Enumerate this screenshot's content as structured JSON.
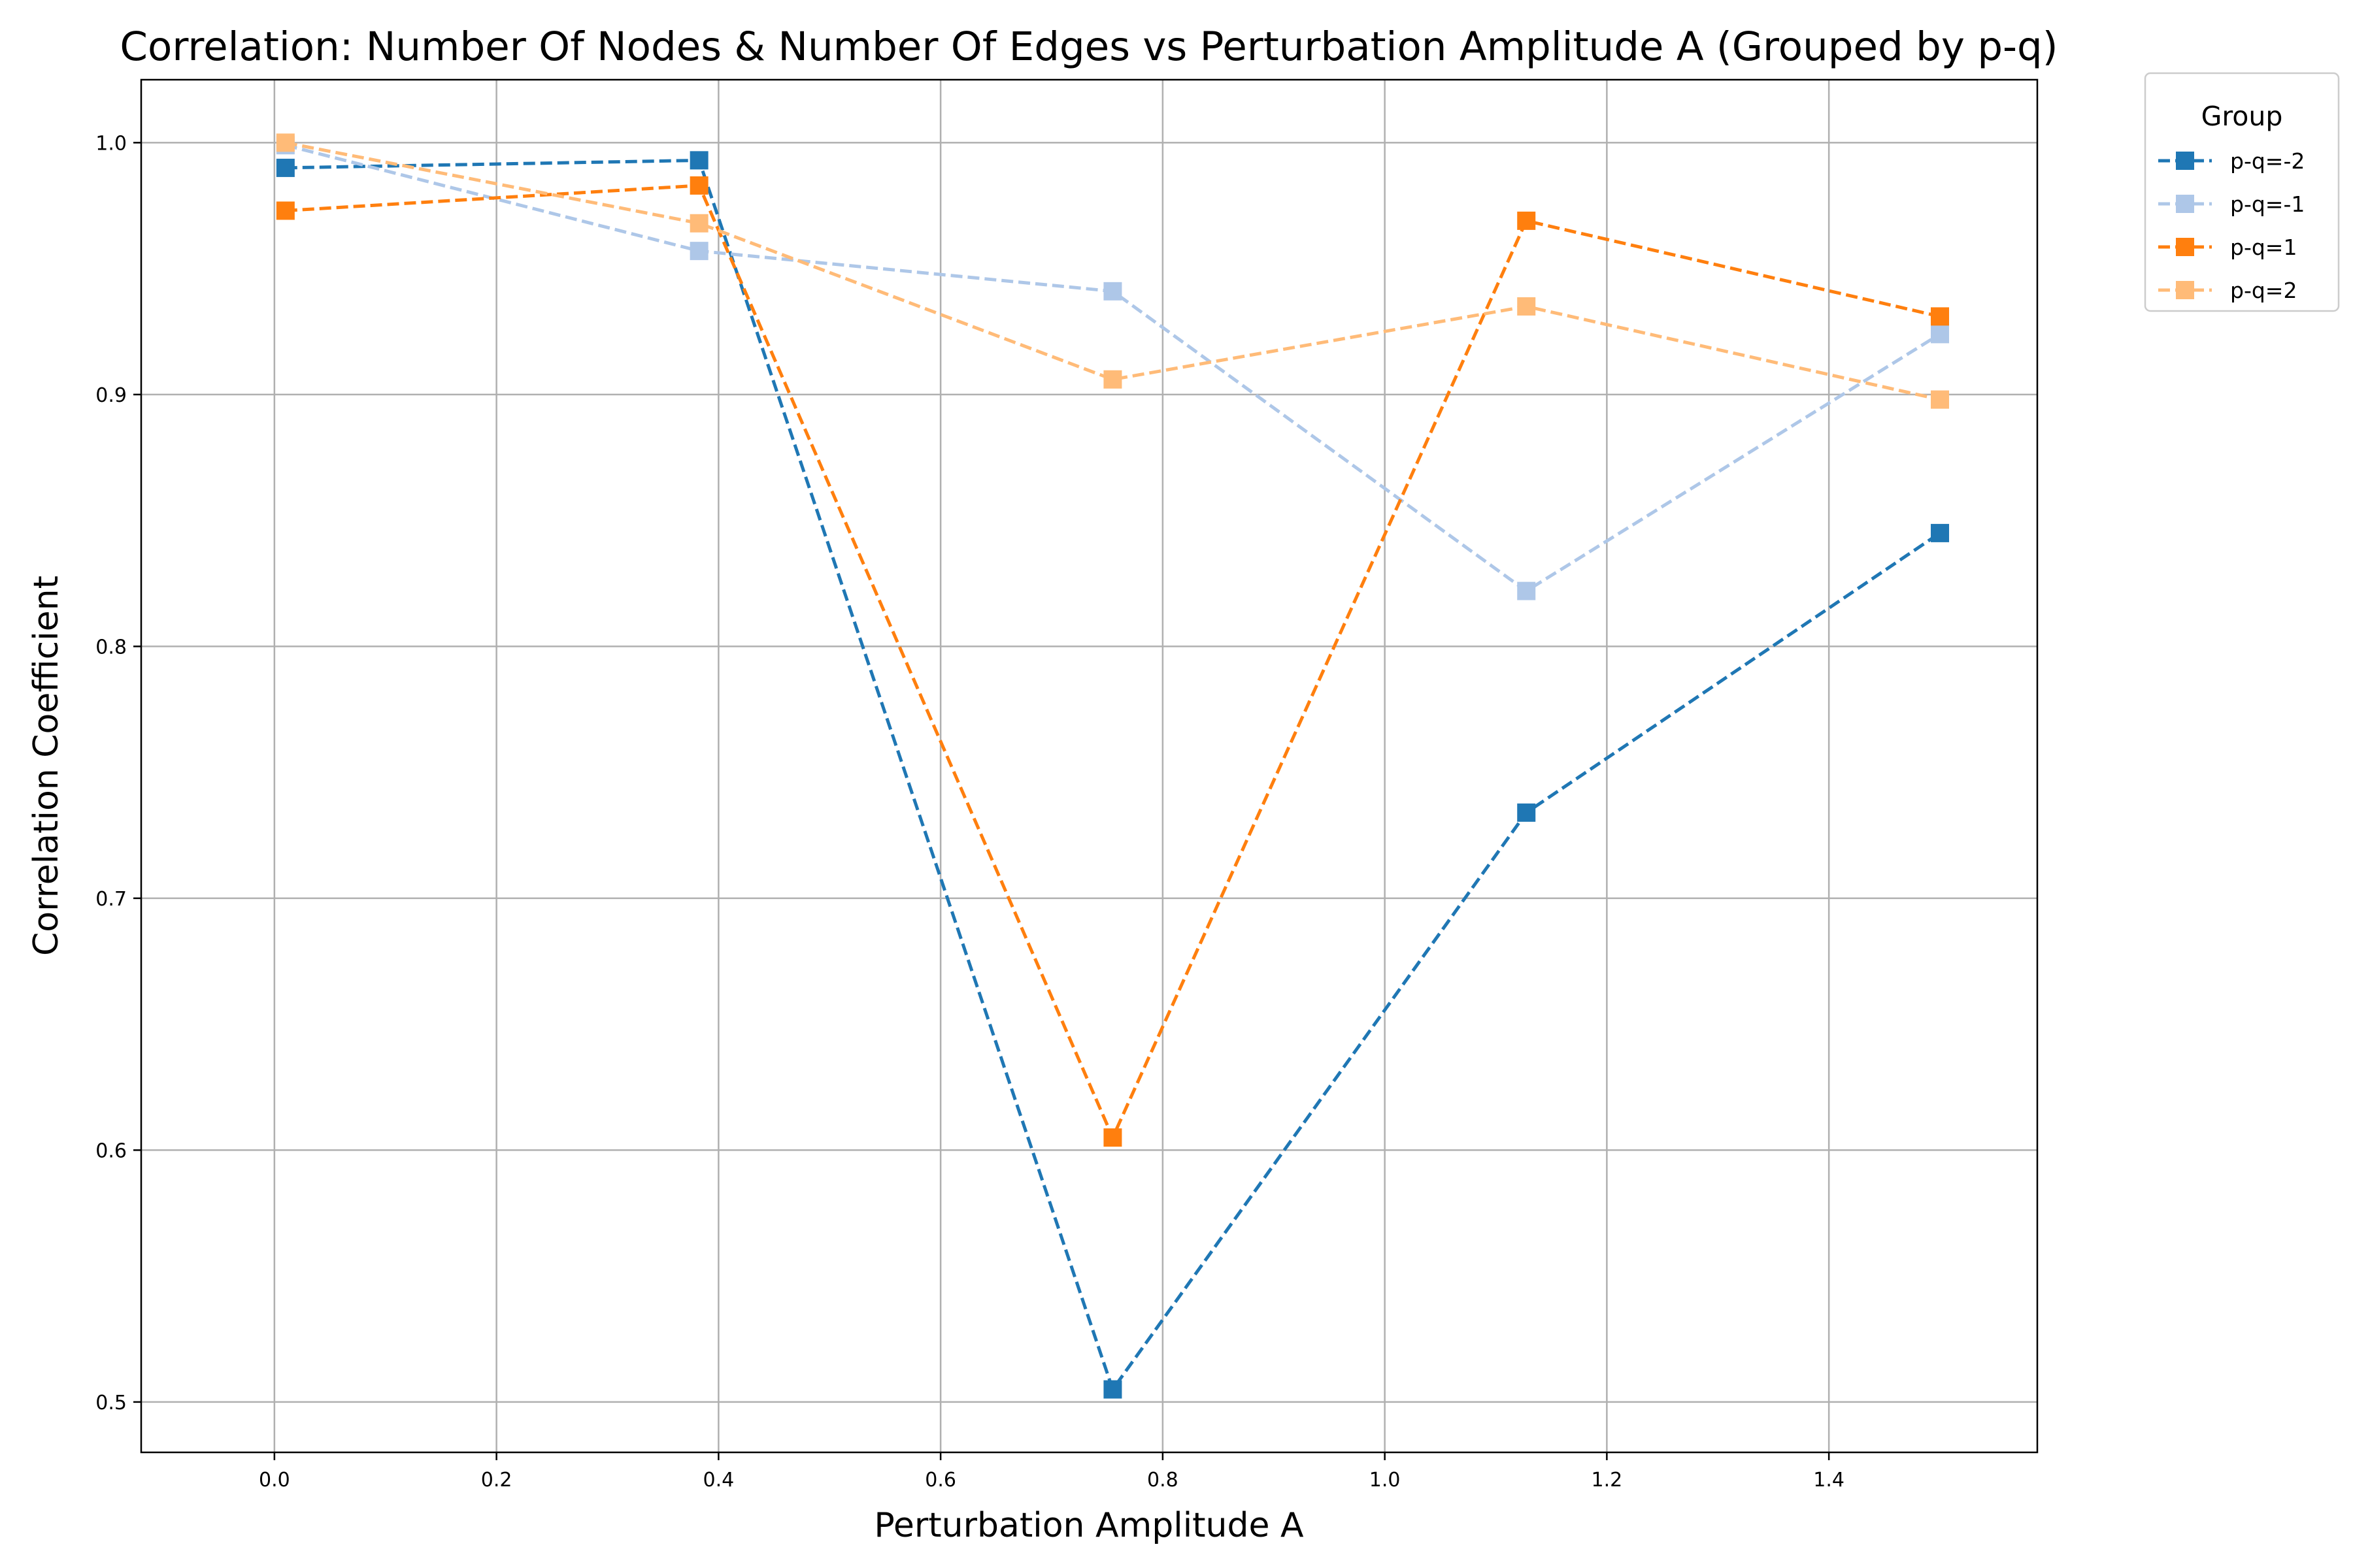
{
  "chart_data": {
    "type": "line",
    "title": "Correlation: Number Of Nodes & Number Of Edges vs Perturbation Amplitude A (Grouped by p-q)",
    "xlabel": "Perturbation Amplitude A",
    "ylabel": "Correlation Coefficient",
    "xlim": [
      -0.12,
      1.5877
    ],
    "ylim": [
      0.48,
      1.025
    ],
    "xticks": [
      0.0,
      0.2,
      0.4,
      0.6,
      0.8,
      1.0,
      1.2,
      1.4
    ],
    "xtick_labels": [
      "0.0",
      "0.2",
      "0.4",
      "0.6",
      "0.8",
      "1.0",
      "1.2",
      "1.4"
    ],
    "yticks": [
      0.5,
      0.6,
      0.7,
      0.8,
      0.9,
      1.0
    ],
    "ytick_labels": [
      "0.5",
      "0.6",
      "0.7",
      "0.8",
      "0.9",
      "1.0"
    ],
    "grid": true,
    "line_style": "dashed",
    "marker": "square",
    "x": [
      0.01,
      0.3825,
      0.755,
      1.1275,
      1.5
    ],
    "series": [
      {
        "name": "p-q=-2",
        "color": "#1f77b4",
        "values": [
          0.99,
          0.993,
          0.505,
          0.734,
          0.845
        ]
      },
      {
        "name": "p-q=-1",
        "color": "#aec7e8",
        "values": [
          0.999,
          0.957,
          0.941,
          0.822,
          0.924
        ]
      },
      {
        "name": "p-q=1",
        "color": "#ff7f0e",
        "values": [
          0.973,
          0.983,
          0.605,
          0.969,
          0.931
        ]
      },
      {
        "name": "p-q=2",
        "color": "#ffbb78",
        "values": [
          1.0,
          0.968,
          0.906,
          0.935,
          0.898
        ]
      }
    ],
    "legend": {
      "title": "Group",
      "placement": "outside-top-right"
    }
  }
}
